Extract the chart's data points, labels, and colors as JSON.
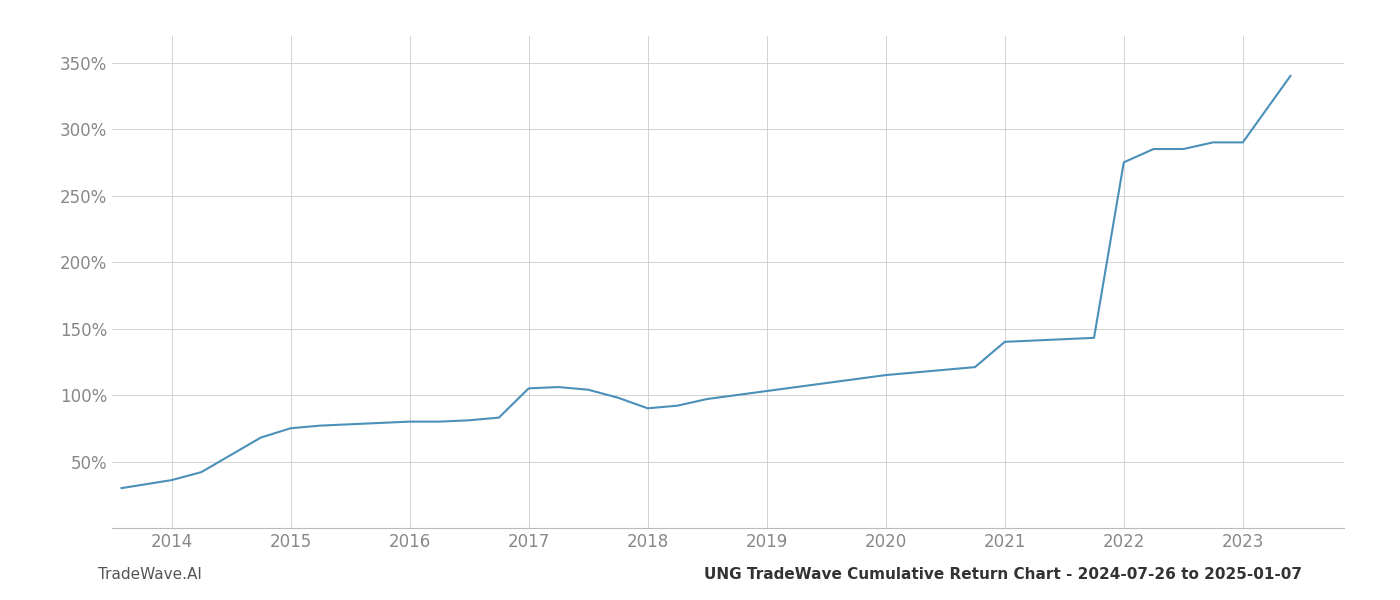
{
  "title": "UNG TradeWave Cumulative Return Chart - 2024-07-26 to 2025-01-07",
  "watermark": "TradeWave.AI",
  "line_color": "#4a90b8",
  "background_color": "#ffffff",
  "grid_color": "#cccccc",
  "x_years": [
    2014,
    2015,
    2016,
    2017,
    2018,
    2019,
    2020,
    2021,
    2022,
    2023
  ],
  "x_values": [
    2013.58,
    2014.0,
    2014.25,
    2014.5,
    2014.75,
    2015.0,
    2015.25,
    2015.5,
    2015.75,
    2016.0,
    2016.25,
    2016.5,
    2016.75,
    2017.0,
    2017.25,
    2017.5,
    2017.75,
    2018.0,
    2018.25,
    2018.5,
    2018.75,
    2019.0,
    2019.25,
    2019.5,
    2019.75,
    2020.0,
    2020.25,
    2020.5,
    2020.75,
    2021.0,
    2021.25,
    2021.5,
    2021.75,
    2022.0,
    2022.25,
    2022.5,
    2022.75,
    2023.0,
    2023.4
  ],
  "y_values": [
    30,
    36,
    42,
    55,
    68,
    75,
    77,
    78,
    79,
    80,
    80,
    81,
    83,
    105,
    106,
    104,
    98,
    90,
    92,
    97,
    100,
    103,
    106,
    109,
    112,
    115,
    117,
    119,
    121,
    140,
    141,
    142,
    143,
    275,
    285,
    285,
    290,
    290,
    340
  ],
  "ylim": [
    0,
    370
  ],
  "yticks": [
    50,
    100,
    150,
    200,
    250,
    300,
    350
  ],
  "tick_fontsize": 12,
  "watermark_fontsize": 11,
  "title_fontsize": 11,
  "tick_color": "#888888",
  "title_color": "#333333",
  "watermark_color": "#555555"
}
